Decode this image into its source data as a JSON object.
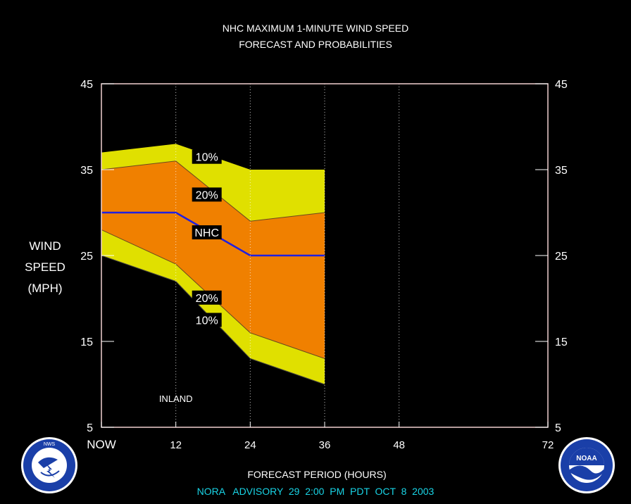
{
  "title_line1": "NHC MAXIMUM 1-MINUTE WIND SPEED",
  "title_line2": "FORECAST AND PROBABILITIES",
  "ylabel_lines": [
    "WIND",
    "SPEED",
    "(MPH)"
  ],
  "xlabel": "FORECAST PERIOD (HOURS)",
  "advisory": "NORA   ADVISORY  29  2:00  PM  PDT  OCT  8  2003",
  "inland_label": "INLAND",
  "logos": {
    "left": "NATIONAL WEATHER SERVICE",
    "right": "NOAA"
  },
  "chart_data": {
    "type": "area",
    "xlim": [
      0,
      72
    ],
    "ylim": [
      5,
      45
    ],
    "x_ticks": [
      {
        "value": 0,
        "label": "NOW"
      },
      {
        "value": 12,
        "label": "12"
      },
      {
        "value": 24,
        "label": "24"
      },
      {
        "value": 36,
        "label": "36"
      },
      {
        "value": 48,
        "label": "48"
      },
      {
        "value": 72,
        "label": "72"
      }
    ],
    "y_ticks": [
      5,
      15,
      25,
      35,
      45
    ],
    "x": [
      0,
      12,
      24,
      36
    ],
    "bands": {
      "upper10": [
        37,
        38,
        35,
        35
      ],
      "upper20": [
        35,
        36,
        29,
        30
      ],
      "nhc": [
        30,
        30,
        25,
        25
      ],
      "lower20": [
        28,
        24,
        16,
        13
      ],
      "lower10": [
        25,
        22,
        13,
        10
      ]
    },
    "band_labels": [
      {
        "text": "10%",
        "x": 17,
        "y": 36.5
      },
      {
        "text": "20%",
        "x": 17,
        "y": 32.1
      },
      {
        "text": "NHC",
        "x": 17,
        "y": 27.7
      },
      {
        "text": "20%",
        "x": 17,
        "y": 20.1
      },
      {
        "text": "10%",
        "x": 17,
        "y": 17.5
      }
    ],
    "colors": {
      "outer": "#e0e000",
      "inner": "#f08000",
      "nhc": "#2020e0",
      "frame": "#f0d0d0",
      "advisory": "#19d4e6"
    },
    "grid_dotted_x": [
      12,
      24,
      36,
      48
    ]
  }
}
